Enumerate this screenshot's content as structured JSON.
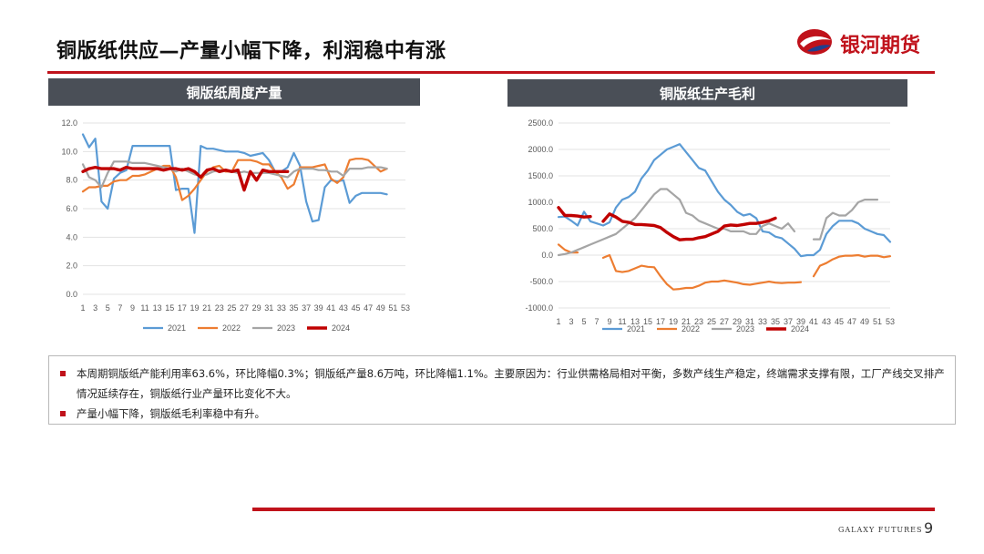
{
  "header": {
    "title": "铜版纸供应—产量小幅下降，利润稳中有涨",
    "logo_text": "银河期货"
  },
  "colors": {
    "accent": "#c0121b",
    "header_bg": "#4a4f57"
  },
  "chart_data": [
    {
      "type": "line",
      "title": "铜版纸周度产量",
      "ylim": [
        0,
        12
      ],
      "yticks": [
        "0.0",
        "2.0",
        "4.0",
        "6.0",
        "8.0",
        "10.0",
        "12.0"
      ],
      "x": [
        1,
        2,
        3,
        4,
        5,
        6,
        7,
        8,
        9,
        10,
        11,
        12,
        13,
        14,
        15,
        16,
        17,
        18,
        19,
        20,
        21,
        22,
        23,
        24,
        25,
        26,
        27,
        28,
        29,
        30,
        31,
        32,
        33,
        34,
        35,
        36,
        37,
        38,
        39,
        40,
        41,
        42,
        43,
        44,
        45,
        46,
        47,
        48,
        49,
        50,
        51,
        52,
        53
      ],
      "xtick_labels": [
        "1",
        "3",
        "5",
        "7",
        "9",
        "11",
        "13",
        "15",
        "17",
        "19",
        "21",
        "23",
        "25",
        "27",
        "29",
        "31",
        "33",
        "35",
        "37",
        "39",
        "41",
        "43",
        "45",
        "47",
        "49",
        "51",
        "53"
      ],
      "legend_position": "bottom",
      "series": [
        {
          "name": "2021",
          "color": "#5b9bd5",
          "width": 2.2,
          "values": [
            11.2,
            10.3,
            10.9,
            6.5,
            6.0,
            8.1,
            8.5,
            8.7,
            10.4,
            10.4,
            10.4,
            10.4,
            10.4,
            10.4,
            10.4,
            7.3,
            7.4,
            7.4,
            4.3,
            10.4,
            10.2,
            10.2,
            10.1,
            10.0,
            10.0,
            10.0,
            9.9,
            9.7,
            9.8,
            9.9,
            9.4,
            8.6,
            8.6,
            8.9,
            9.9,
            9.0,
            6.5,
            5.1,
            5.2,
            7.5,
            8.0,
            7.9,
            8.0,
            6.4,
            6.9,
            7.1,
            7.1,
            7.1,
            7.1,
            7.0,
            null,
            null,
            null
          ]
        },
        {
          "name": "2022",
          "color": "#ed7d31",
          "width": 2.2,
          "values": [
            7.2,
            7.5,
            7.5,
            7.6,
            7.6,
            7.9,
            8.0,
            8.0,
            8.3,
            8.3,
            8.4,
            8.6,
            8.8,
            9.0,
            9.0,
            8.2,
            6.6,
            6.9,
            7.4,
            8.0,
            8.6,
            8.9,
            9.0,
            8.6,
            8.6,
            9.4,
            9.4,
            9.4,
            9.3,
            9.1,
            9.1,
            8.6,
            8.2,
            7.4,
            7.7,
            8.9,
            8.9,
            8.9,
            9.0,
            9.1,
            8.1,
            7.8,
            8.2,
            9.4,
            9.5,
            9.5,
            9.4,
            9.0,
            8.6,
            8.8,
            null,
            null,
            null
          ]
        },
        {
          "name": "2023",
          "color": "#a5a5a5",
          "width": 2.2,
          "values": [
            9.1,
            8.2,
            8.0,
            7.5,
            8.5,
            9.3,
            9.3,
            9.3,
            9.2,
            9.2,
            9.2,
            9.1,
            9.0,
            8.9,
            8.8,
            8.6,
            8.8,
            8.6,
            8.4,
            8.3,
            8.4,
            8.6,
            8.7,
            8.7,
            8.6,
            8.5,
            8.6,
            8.5,
            8.5,
            8.5,
            8.5,
            8.4,
            8.3,
            8.2,
            8.6,
            8.8,
            8.8,
            8.8,
            8.7,
            8.7,
            8.6,
            8.6,
            8.3,
            8.8,
            8.8,
            8.8,
            8.9,
            8.9,
            8.9,
            8.8,
            null,
            null,
            null
          ]
        },
        {
          "name": "2024",
          "color": "#c00000",
          "width": 3.4,
          "values": [
            8.6,
            8.8,
            8.9,
            8.8,
            8.8,
            8.8,
            8.7,
            8.9,
            8.8,
            8.8,
            8.8,
            8.8,
            8.8,
            8.7,
            8.8,
            8.8,
            8.7,
            8.8,
            8.6,
            8.2,
            8.7,
            8.8,
            8.6,
            8.7,
            8.6,
            8.7,
            7.3,
            8.6,
            8.0,
            8.7,
            8.6,
            8.6,
            8.6,
            8.6,
            null,
            null,
            null,
            null,
            null,
            null,
            null,
            null,
            null,
            null,
            null,
            null,
            null,
            null,
            null,
            null,
            null,
            null,
            null
          ]
        }
      ]
    },
    {
      "type": "line",
      "title": "铜版纸生产毛利",
      "ylim": [
        -1000,
        2500
      ],
      "yticks": [
        "-1000.0",
        "-500.0",
        "0.0",
        "500.0",
        "1000.0",
        "1500.0",
        "2000.0",
        "2500.0"
      ],
      "x": [
        1,
        2,
        3,
        4,
        5,
        6,
        7,
        8,
        9,
        10,
        11,
        12,
        13,
        14,
        15,
        16,
        17,
        18,
        19,
        20,
        21,
        22,
        23,
        24,
        25,
        26,
        27,
        28,
        29,
        30,
        31,
        32,
        33,
        34,
        35,
        36,
        37,
        38,
        39,
        40,
        41,
        42,
        43,
        44,
        45,
        46,
        47,
        48,
        49,
        50,
        51,
        52,
        53
      ],
      "xtick_labels": [
        "1",
        "3",
        "5",
        "7",
        "9",
        "11",
        "13",
        "15",
        "17",
        "19",
        "21",
        "23",
        "25",
        "27",
        "29",
        "31",
        "33",
        "35",
        "37",
        "39",
        "41",
        "43",
        "45",
        "47",
        "49",
        "51",
        "53"
      ],
      "legend_position": "bottom",
      "series": [
        {
          "name": "2021",
          "color": "#5b9bd5",
          "width": 2.2,
          "values": [
            720,
            730,
            650,
            560,
            820,
            640,
            600,
            560,
            620,
            900,
            1050,
            1100,
            1200,
            1450,
            1600,
            1800,
            1900,
            2000,
            2050,
            2100,
            1950,
            1800,
            1650,
            1600,
            1400,
            1200,
            1050,
            950,
            820,
            750,
            780,
            700,
            450,
            430,
            350,
            320,
            220,
            120,
            -20,
            0,
            0,
            100,
            400,
            550,
            650,
            650,
            650,
            600,
            500,
            450,
            400,
            380,
            250
          ]
        },
        {
          "name": "2022",
          "color": "#ed7d31",
          "width": 2.2,
          "values": [
            200,
            100,
            50,
            50,
            null,
            null,
            null,
            -50,
            0,
            -300,
            -320,
            -300,
            -250,
            -200,
            -220,
            -230,
            -400,
            -550,
            -650,
            -640,
            -620,
            -620,
            -580,
            -520,
            -500,
            -500,
            -480,
            -500,
            -520,
            -550,
            -560,
            -540,
            -520,
            -500,
            -520,
            -530,
            -520,
            -520,
            -510,
            null,
            -400,
            -200,
            -150,
            -80,
            -30,
            -10,
            -10,
            0,
            -30,
            -10,
            -10,
            -40,
            -20
          ]
        },
        {
          "name": "2023",
          "color": "#a5a5a5",
          "width": 2.2,
          "values": [
            0,
            20,
            50,
            100,
            150,
            200,
            250,
            300,
            350,
            400,
            500,
            600,
            700,
            850,
            1000,
            1150,
            1250,
            1250,
            1150,
            1050,
            800,
            750,
            650,
            600,
            550,
            500,
            500,
            450,
            450,
            450,
            400,
            400,
            550,
            600,
            550,
            500,
            600,
            450,
            null,
            null,
            300,
            300,
            700,
            800,
            750,
            750,
            850,
            1000,
            1050,
            1050,
            1050,
            null,
            null
          ]
        },
        {
          "name": "2024",
          "color": "#c00000",
          "width": 3.4,
          "values": [
            900,
            750,
            750,
            740,
            720,
            730,
            null,
            640,
            780,
            720,
            640,
            620,
            580,
            580,
            570,
            560,
            520,
            430,
            350,
            290,
            300,
            300,
            330,
            350,
            400,
            450,
            550,
            570,
            560,
            580,
            600,
            600,
            620,
            650,
            700,
            null,
            null,
            null,
            null,
            null,
            null,
            null,
            null,
            null,
            null,
            null,
            null,
            null,
            null,
            null,
            null,
            null,
            null
          ]
        }
      ]
    }
  ],
  "notes": [
    "本周期铜版纸产能利用率63.6%，环比降幅0.3%；铜版纸产量8.6万吨，环比降幅1.1%。主要原因为：行业供需格局相对平衡，多数产线生产稳定，终端需求支撑有限，工厂产线交叉排产情况延续存在，铜版纸行业产量环比变化不大。",
    "产量小幅下降，铜版纸毛利率稳中有升。"
  ],
  "footer": {
    "brand": "GALAXY FUTURES",
    "page": "9"
  }
}
